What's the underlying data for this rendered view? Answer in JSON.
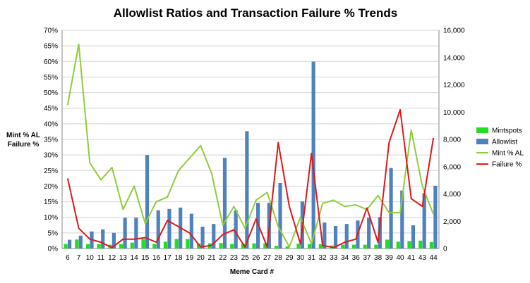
{
  "chart_data": {
    "type": "bar",
    "title": "Allowlist Ratios and Transaction Failure % Trends",
    "xlabel": "Meme Card #",
    "ylabel_lines": [
      "Mint % AL",
      "Failure %"
    ],
    "y_left": {
      "min": 0,
      "max": 70,
      "step": 5,
      "suffix": "%"
    },
    "y_right": {
      "min": 0,
      "max": 16000,
      "step": 2000
    },
    "categories": [
      "6",
      "7",
      "10",
      "11",
      "12",
      "13",
      "14",
      "15",
      "16",
      "17",
      "18",
      "19",
      "20",
      "21",
      "22",
      "23",
      "25",
      "26",
      "27",
      "28",
      "29",
      "30",
      "31",
      "32",
      "33",
      "34",
      "36",
      "37",
      "38",
      "39",
      "40",
      "41",
      "43",
      "44"
    ],
    "series": [
      {
        "name": "Mintspots",
        "kind": "bar",
        "axis": "right",
        "color": "#22dd22",
        "values": [
          330,
          660,
          320,
          330,
          280,
          330,
          430,
          700,
          330,
          500,
          700,
          700,
          350,
          380,
          400,
          330,
          350,
          380,
          380,
          200,
          150,
          350,
          320,
          320,
          220,
          280,
          280,
          280,
          280,
          650,
          500,
          550,
          580,
          470
        ]
      },
      {
        "name": "Allowlist",
        "kind": "bar",
        "axis": "right",
        "color": "#4f81bd",
        "values": [
          640,
          940,
          1250,
          1400,
          1150,
          2250,
          2250,
          6850,
          2800,
          2900,
          3000,
          2550,
          1600,
          1800,
          6650,
          2800,
          8600,
          3350,
          3350,
          4800,
          0,
          3450,
          13700,
          1900,
          1650,
          1800,
          2050,
          2250,
          2300,
          5900,
          4250,
          1700,
          4050,
          4600
        ]
      },
      {
        "name": "Mint % AL",
        "kind": "line",
        "axis": "left",
        "color": "#8fce3a",
        "values": [
          46,
          65.5,
          27.5,
          22,
          26,
          12.5,
          20,
          8,
          15,
          16.5,
          25,
          29,
          33,
          24,
          7.5,
          13.5,
          6.5,
          15.5,
          18,
          7,
          0.5,
          10,
          1.5,
          14.5,
          15.5,
          13.5,
          14,
          12.5,
          17,
          11.5,
          11.5,
          38,
          20,
          11
        ]
      },
      {
        "name": "Failure %",
        "kind": "line",
        "axis": "left",
        "color": "#e01818",
        "values": [
          22.5,
          6.5,
          3,
          2,
          0.3,
          3,
          3,
          3.5,
          2,
          9,
          7,
          5,
          0.5,
          1,
          4.5,
          6,
          0.5,
          9.5,
          0.5,
          34,
          13.5,
          1.5,
          30.5,
          1,
          0.3,
          2,
          3,
          13,
          2,
          34,
          44.5,
          16,
          13.5,
          35.5
        ]
      }
    ]
  }
}
